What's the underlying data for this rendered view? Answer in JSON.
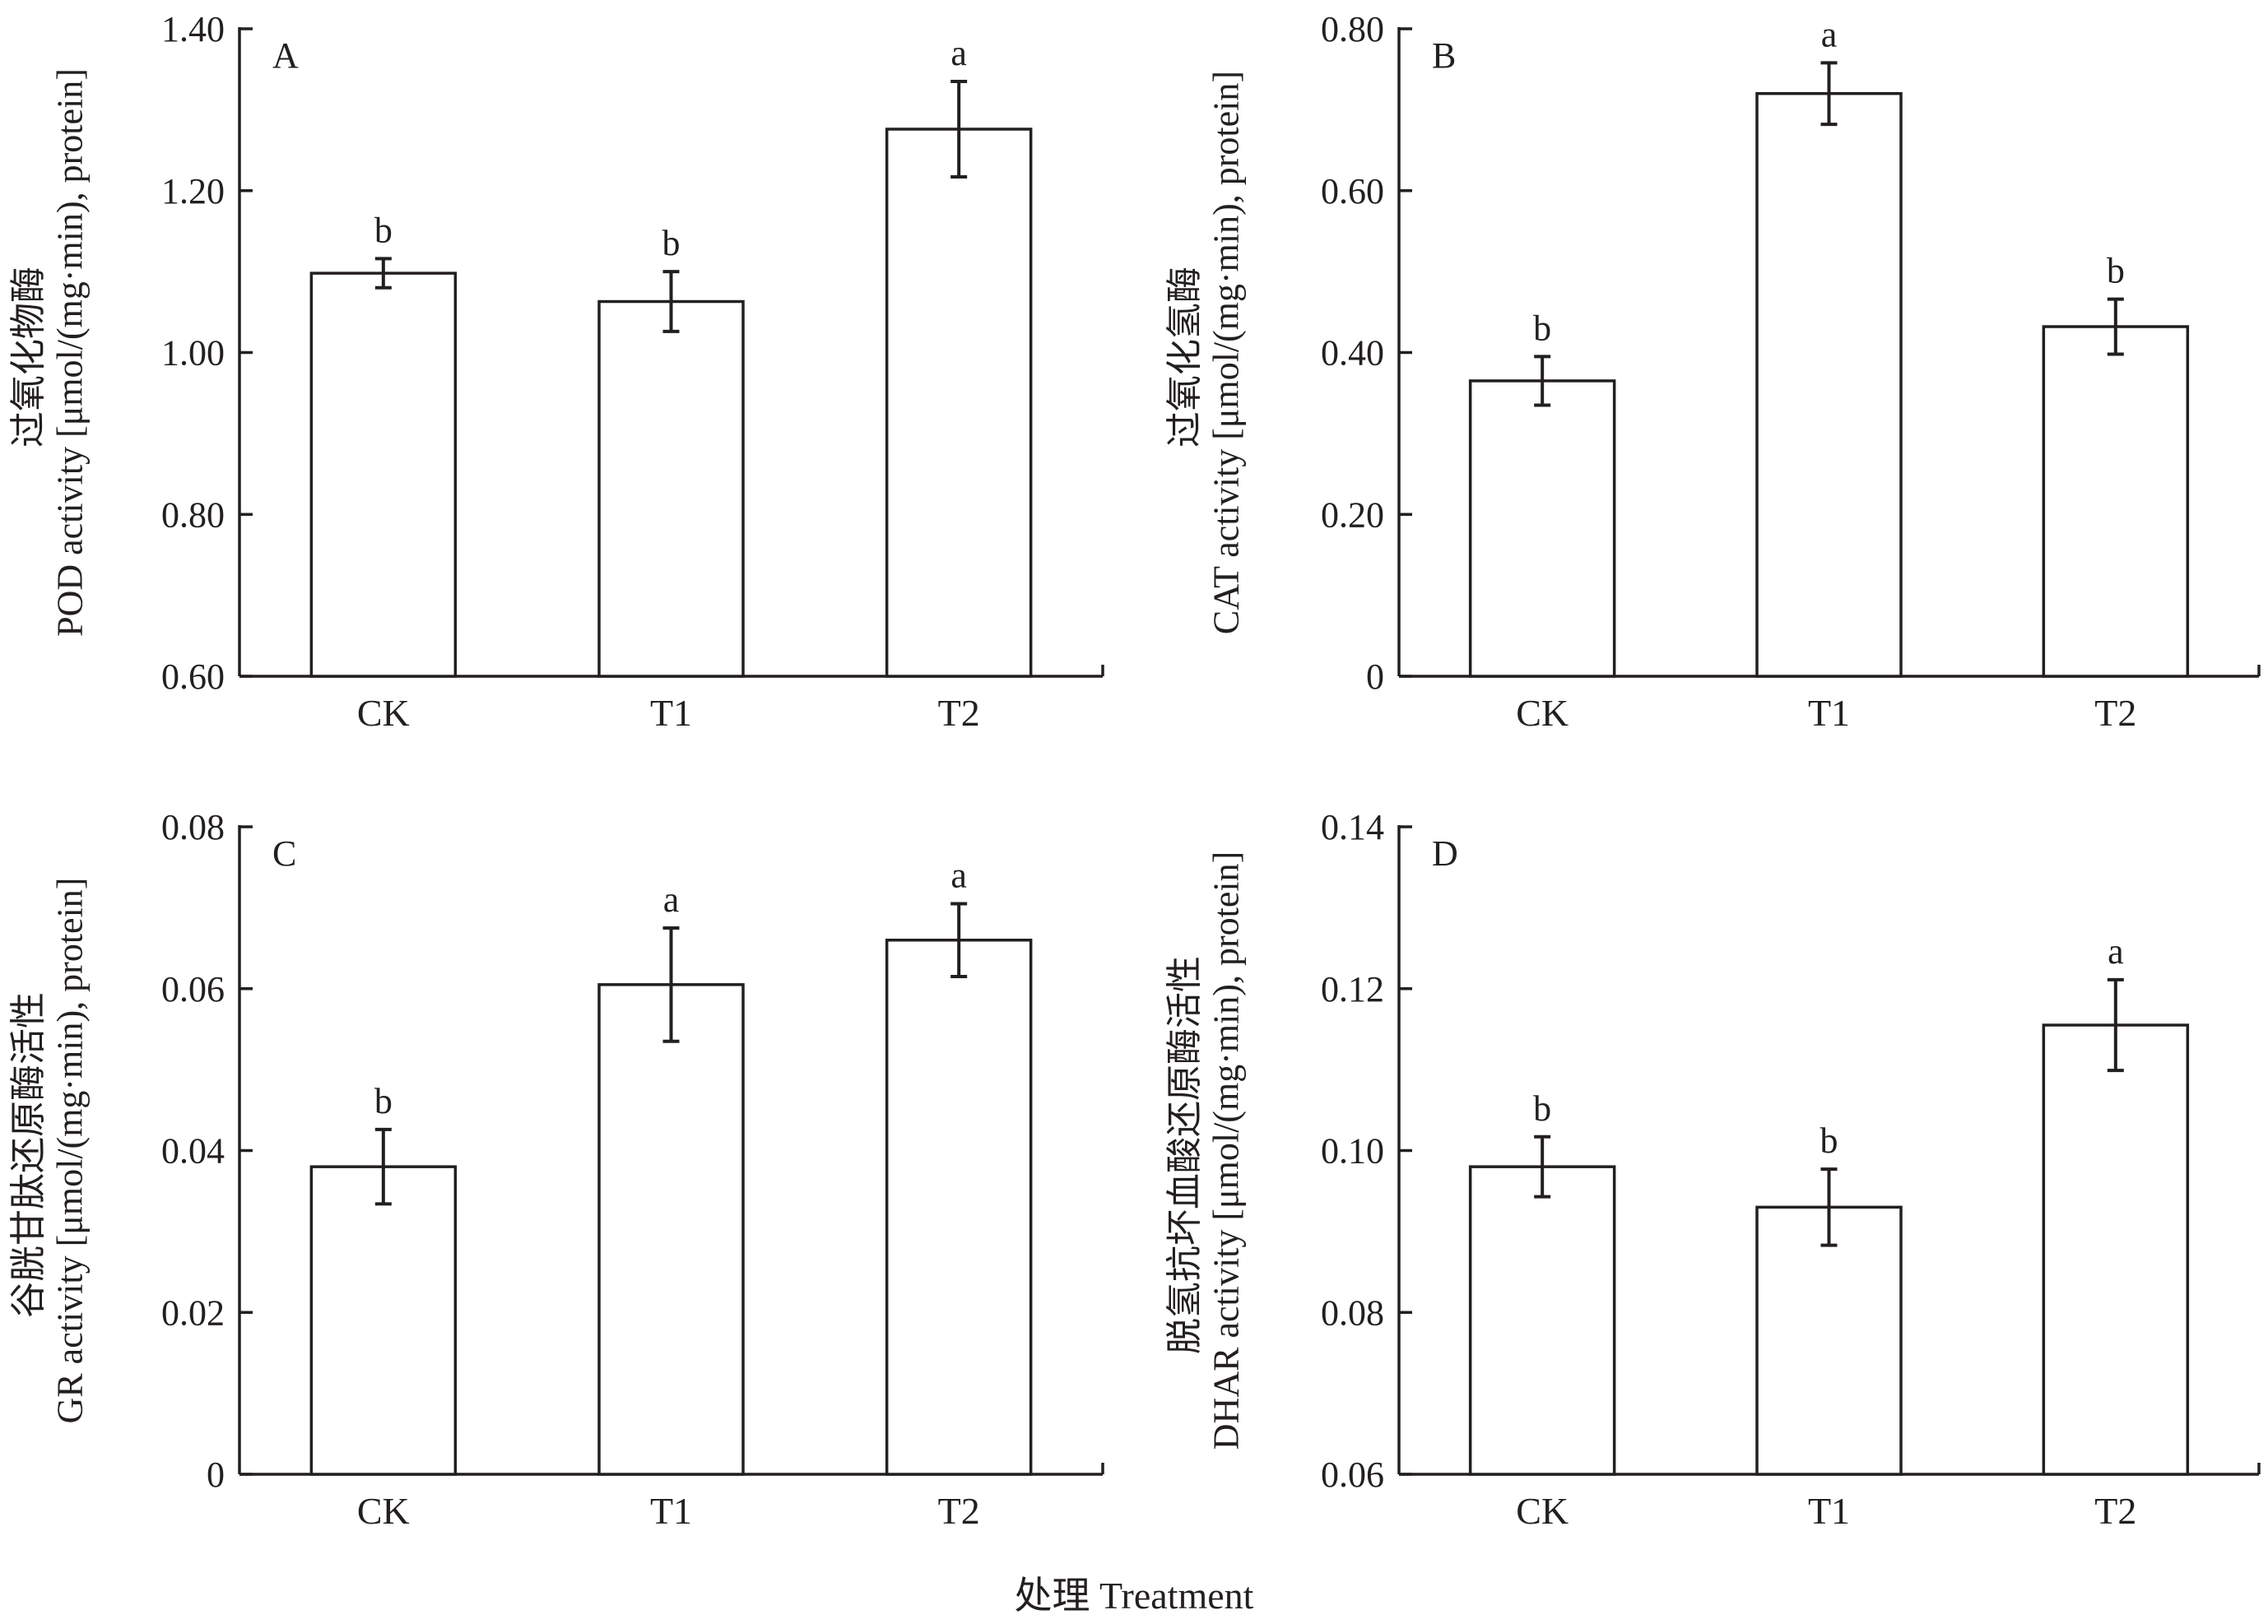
{
  "figure": {
    "xtitle": "处理 Treatment"
  },
  "chart_data": [
    {
      "type": "bar",
      "panel": "A",
      "categories": [
        "CK",
        "T1",
        "T2"
      ],
      "values": [
        1.098,
        1.063,
        1.276
      ],
      "errors": [
        0.018,
        0.037,
        0.059
      ],
      "significance": [
        "b",
        "b",
        "a"
      ],
      "ylabel_cn": "过氧化物酶",
      "ylabel_en": "POD activity [μmol/(mg·min), protein]",
      "ylim": [
        0.6,
        1.4
      ],
      "yticks": [
        0.6,
        0.8,
        1.0,
        1.2,
        1.4
      ],
      "ytick_labels": [
        "0.60",
        "0.80",
        "1.00",
        "1.20",
        "1.40"
      ]
    },
    {
      "type": "bar",
      "panel": "B",
      "categories": [
        "CK",
        "T1",
        "T2"
      ],
      "values": [
        0.365,
        0.72,
        0.432
      ],
      "errors": [
        0.03,
        0.038,
        0.034
      ],
      "significance": [
        "b",
        "a",
        "b"
      ],
      "ylabel_cn": "过氧化氢酶",
      "ylabel_en": "CAT activity [μmol/(mg·min), protein]",
      "ylim": [
        0,
        0.8
      ],
      "yticks": [
        0,
        0.2,
        0.4,
        0.6,
        0.8
      ],
      "ytick_labels": [
        "0",
        "0.20",
        "0.40",
        "0.60",
        "0.80"
      ]
    },
    {
      "type": "bar",
      "panel": "C",
      "categories": [
        "CK",
        "T1",
        "T2"
      ],
      "values": [
        0.038,
        0.0605,
        0.066
      ],
      "errors": [
        0.0046,
        0.007,
        0.0045
      ],
      "significance": [
        "b",
        "a",
        "a"
      ],
      "ylabel_cn": "谷胱甘肽还原酶活性",
      "ylabel_en": "GR activity [μmol/(mg·min), protein]",
      "ylim": [
        0,
        0.08
      ],
      "yticks": [
        0,
        0.02,
        0.04,
        0.06,
        0.08
      ],
      "ytick_labels": [
        "0",
        "0.02",
        "0.04",
        "0.06",
        "0.08"
      ]
    },
    {
      "type": "bar",
      "panel": "D",
      "categories": [
        "CK",
        "T1",
        "T2"
      ],
      "values": [
        0.098,
        0.093,
        0.1155
      ],
      "errors": [
        0.0037,
        0.0047,
        0.0056
      ],
      "significance": [
        "b",
        "b",
        "a"
      ],
      "ylabel_cn": "脱氢抗坏血酸还原酶活性",
      "ylabel_en": "DHAR activity [μmol/(mg·min), protein]",
      "ylim": [
        0.06,
        0.14
      ],
      "yticks": [
        0.06,
        0.08,
        0.1,
        0.12,
        0.14
      ],
      "ytick_labels": [
        "0.06",
        "0.08",
        "0.10",
        "0.12",
        "0.14"
      ]
    }
  ]
}
